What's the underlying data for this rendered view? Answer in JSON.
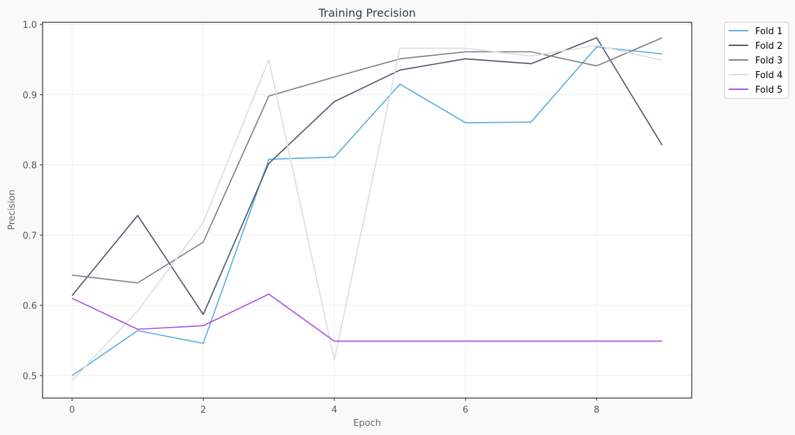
{
  "chart_data": {
    "type": "line",
    "title": "Training Precision",
    "xlabel": "Epoch",
    "ylabel": "Precision",
    "x": [
      0,
      1,
      2,
      3,
      4,
      5,
      6,
      7,
      8,
      9
    ],
    "xlim": [
      -0.45,
      9.45
    ],
    "ylim": [
      0.468,
      1.003
    ],
    "xticks": [
      0,
      2,
      4,
      6,
      8
    ],
    "yticks": [
      0.5,
      0.6,
      0.7,
      0.8,
      0.9,
      1.0
    ],
    "xtick_labels": [
      "0",
      "2",
      "4",
      "6",
      "8"
    ],
    "ytick_labels": [
      "0.5",
      "0.6",
      "0.7",
      "0.8",
      "0.9",
      "1.0"
    ],
    "grid": true,
    "legend_position": "outside-top-right",
    "series": [
      {
        "name": "Fold 1",
        "color": "#5dade2",
        "values": [
          0.5,
          0.564,
          0.546,
          0.808,
          0.811,
          0.915,
          0.86,
          0.861,
          0.968,
          0.958
        ]
      },
      {
        "name": "Fold 2",
        "color": "#4f5b6b",
        "values": [
          0.614,
          0.728,
          0.587,
          0.802,
          0.89,
          0.935,
          0.951,
          0.944,
          0.981,
          0.828
        ]
      },
      {
        "name": "Fold 3",
        "color": "#808080",
        "values": [
          0.643,
          0.632,
          0.69,
          0.898,
          0.925,
          0.951,
          0.961,
          0.961,
          0.941,
          0.981
        ]
      },
      {
        "name": "Fold 4",
        "color": "#dddddd",
        "values": [
          0.493,
          0.592,
          0.718,
          0.95,
          0.522,
          0.966,
          0.966,
          0.955,
          0.97,
          0.949
        ]
      },
      {
        "name": "Fold 5",
        "color": "#a855e0",
        "values": [
          0.61,
          0.566,
          0.571,
          0.616,
          0.549,
          0.549,
          0.549,
          0.549,
          0.549,
          0.549
        ]
      }
    ]
  }
}
